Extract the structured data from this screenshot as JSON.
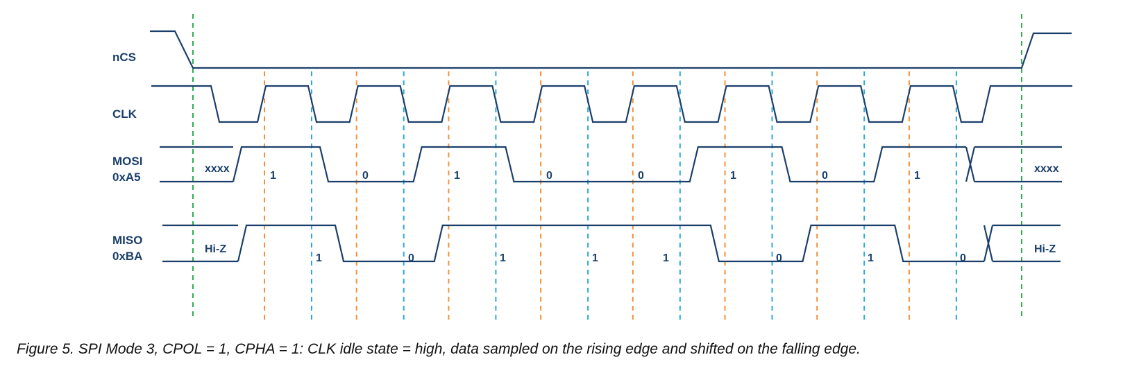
{
  "signals": {
    "ncs": {
      "name": "nCS"
    },
    "clk": {
      "name": "CLK"
    },
    "mosi": {
      "name": "MOSI",
      "value": "0xA5",
      "bits": [
        "1",
        "0",
        "1",
        "0",
        "0",
        "1",
        "0",
        "1"
      ],
      "idle_label": "xxxx"
    },
    "miso": {
      "name": "MISO",
      "value": "0xBA",
      "bits": [
        "1",
        "0",
        "1",
        "1",
        "1",
        "0",
        "1",
        "0"
      ],
      "idle_label": "Hi-Z"
    }
  },
  "colors": {
    "waveform": "#1b3f6b",
    "chip_select_marker": "#2eae4f",
    "rising_edge_marker": "#f0913a",
    "falling_edge_marker": "#2ea8d9"
  },
  "caption": "Figure 5. SPI Mode 3, CPOL = 1, CPHA = 1: CLK idle state = high, data sampled on the rising edge and shifted on the falling edge."
}
